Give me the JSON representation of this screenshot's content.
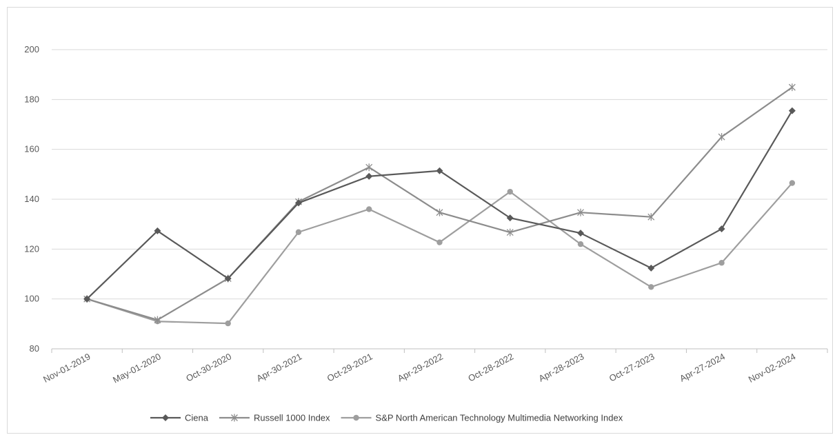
{
  "chart_data": {
    "type": "line",
    "title": "",
    "xlabel": "",
    "ylabel": "",
    "categories": [
      "Nov-01-2019",
      "May-01-2020",
      "Oct-30-2020",
      "Apr-30-2021",
      "Oct-29-2021",
      "Apr-29-2022",
      "Oct-28-2022",
      "Apr-28-2023",
      "Oct-27-2023",
      "Apr-27-2024",
      "Nov-02-2024"
    ],
    "ylim": [
      80,
      200
    ],
    "yticks": [
      80,
      100,
      120,
      140,
      160,
      180,
      200
    ],
    "grid": "horizontal",
    "legend_position": "bottom",
    "series": [
      {
        "name": "Ciena",
        "marker": "diamond",
        "color": "#595959",
        "values": [
          100,
          127.3,
          108.2,
          138.5,
          149.2,
          151.4,
          132.5,
          126.4,
          112.4,
          128.1,
          175.5
        ]
      },
      {
        "name": "Russell 1000 Index",
        "marker": "star",
        "color": "#8c8c8c",
        "values": [
          100,
          91.6,
          108.2,
          139.0,
          152.8,
          134.7,
          126.7,
          134.7,
          132.9,
          165.0,
          184.9
        ]
      },
      {
        "name": "S&P North American Technology Multimedia Networking Index",
        "marker": "circle",
        "color": "#9e9e9e",
        "values": [
          100,
          91.0,
          90.2,
          126.8,
          136.0,
          122.7,
          143.0,
          122.0,
          104.8,
          114.5,
          146.5
        ]
      }
    ]
  }
}
